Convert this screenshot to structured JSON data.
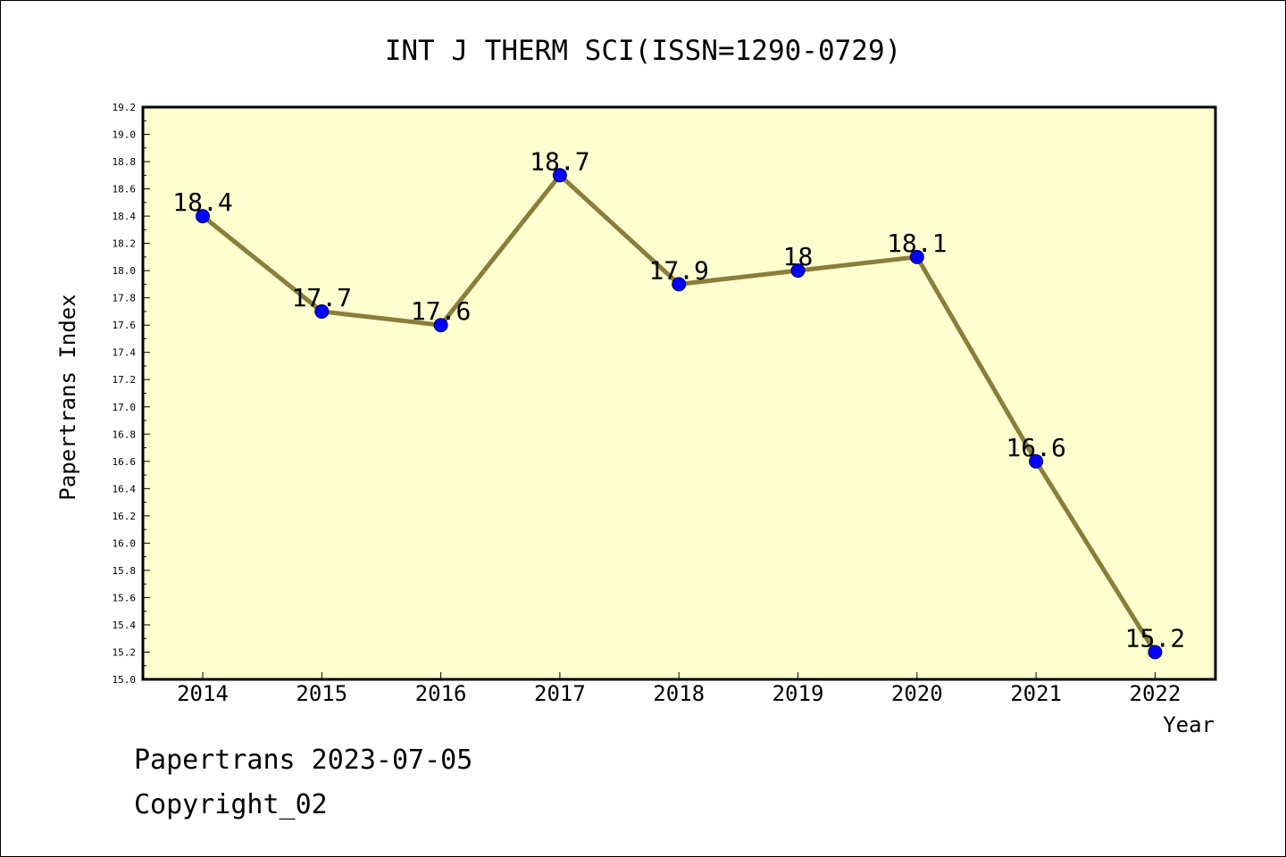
{
  "chart_data": {
    "type": "line",
    "title": "INT J THERM SCI(ISSN=1290-0729)",
    "xlabel": "Year",
    "ylabel": "Papertrans Index",
    "categories": [
      "2014",
      "2015",
      "2016",
      "2017",
      "2018",
      "2019",
      "2020",
      "2021",
      "2022"
    ],
    "series": [
      {
        "values": [
          18.4,
          17.7,
          17.6,
          18.7,
          17.9,
          18.0,
          18.1,
          16.6,
          15.2
        ],
        "labels": [
          "18.4",
          "17.7",
          "17.6",
          "18.7",
          "17.9",
          "18",
          "18.1",
          "16.6",
          "15.2"
        ]
      }
    ],
    "ylim": [
      15.0,
      19.2
    ],
    "ytick_step": 0.2,
    "yticks": [
      "15.0",
      "15.2",
      "15.4",
      "15.6",
      "15.8",
      "16.0",
      "16.2",
      "16.4",
      "16.6",
      "16.8",
      "17.0",
      "17.2",
      "17.4",
      "17.6",
      "17.8",
      "18.0",
      "18.2",
      "18.4",
      "18.6",
      "18.8",
      "19.0",
      "19.2"
    ],
    "grid": false,
    "legend": "none",
    "colors": {
      "plot_background": "#ffffd0",
      "line": "#8b7d3a",
      "marker": "#0000ff"
    }
  },
  "footer": {
    "line1": "Papertrans 2023-07-05",
    "line2": "Copyright_02"
  }
}
